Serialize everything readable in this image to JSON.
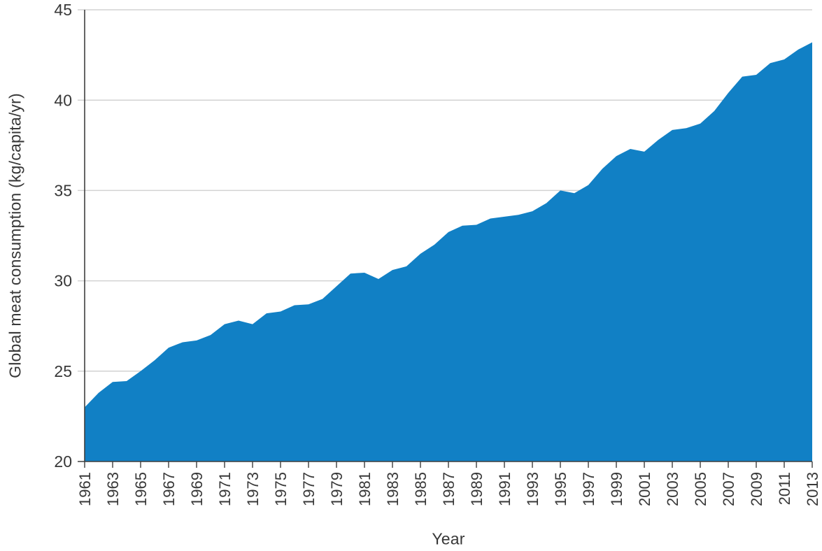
{
  "chart_data": {
    "type": "area",
    "title": "",
    "xlabel": "Year",
    "ylabel": "Global meat consumption (kg/capita/yr)",
    "x": [
      1961,
      1962,
      1963,
      1964,
      1965,
      1966,
      1967,
      1968,
      1969,
      1970,
      1971,
      1972,
      1973,
      1974,
      1975,
      1976,
      1977,
      1978,
      1979,
      1980,
      1981,
      1982,
      1983,
      1984,
      1985,
      1986,
      1987,
      1988,
      1989,
      1990,
      1991,
      1992,
      1993,
      1994,
      1995,
      1996,
      1997,
      1998,
      1999,
      2000,
      2001,
      2002,
      2003,
      2004,
      2005,
      2006,
      2007,
      2008,
      2009,
      2010,
      2011,
      2012,
      2013
    ],
    "values": [
      23.0,
      23.8,
      24.4,
      24.45,
      25.0,
      25.6,
      26.3,
      26.6,
      26.7,
      27.0,
      27.6,
      27.8,
      27.6,
      28.2,
      28.3,
      28.65,
      28.7,
      29.0,
      29.7,
      30.4,
      30.45,
      30.1,
      30.6,
      30.8,
      31.5,
      32.0,
      32.7,
      33.05,
      33.1,
      33.45,
      33.55,
      33.65,
      33.85,
      34.3,
      35.0,
      34.85,
      35.3,
      36.2,
      36.9,
      37.3,
      37.15,
      37.8,
      38.35,
      38.45,
      38.7,
      39.4,
      40.4,
      41.3,
      41.4,
      42.05,
      42.25,
      42.8,
      43.2
    ],
    "ylim": [
      20,
      45
    ],
    "yticks": [
      20,
      25,
      30,
      35,
      40,
      45
    ],
    "ytick_labels": [
      "20",
      "25",
      "30",
      "35",
      "40",
      "45"
    ],
    "xtick_years": [
      1961,
      1963,
      1965,
      1967,
      1969,
      1971,
      1973,
      1975,
      1977,
      1979,
      1981,
      1983,
      1985,
      1987,
      1989,
      1991,
      1993,
      1995,
      1997,
      1999,
      2001,
      2003,
      2005,
      2007,
      2009,
      2011,
      2013
    ],
    "xtick_labels": [
      "1961",
      "1963",
      "1965",
      "1967",
      "1969",
      "1971",
      "1973",
      "1975",
      "1977",
      "1979",
      "1981",
      "1983",
      "1985",
      "1987",
      "1989",
      "1991",
      "1993",
      "1995",
      "1997",
      "1999",
      "2001",
      "2003",
      "2005",
      "2007",
      "2009",
      "2011",
      "2013"
    ],
    "grid": true,
    "legend": false,
    "area_color": "#1180c5",
    "grid_color": "#d2d2d2",
    "axis_color": "#3f3f3f",
    "text_color": "#383838"
  }
}
